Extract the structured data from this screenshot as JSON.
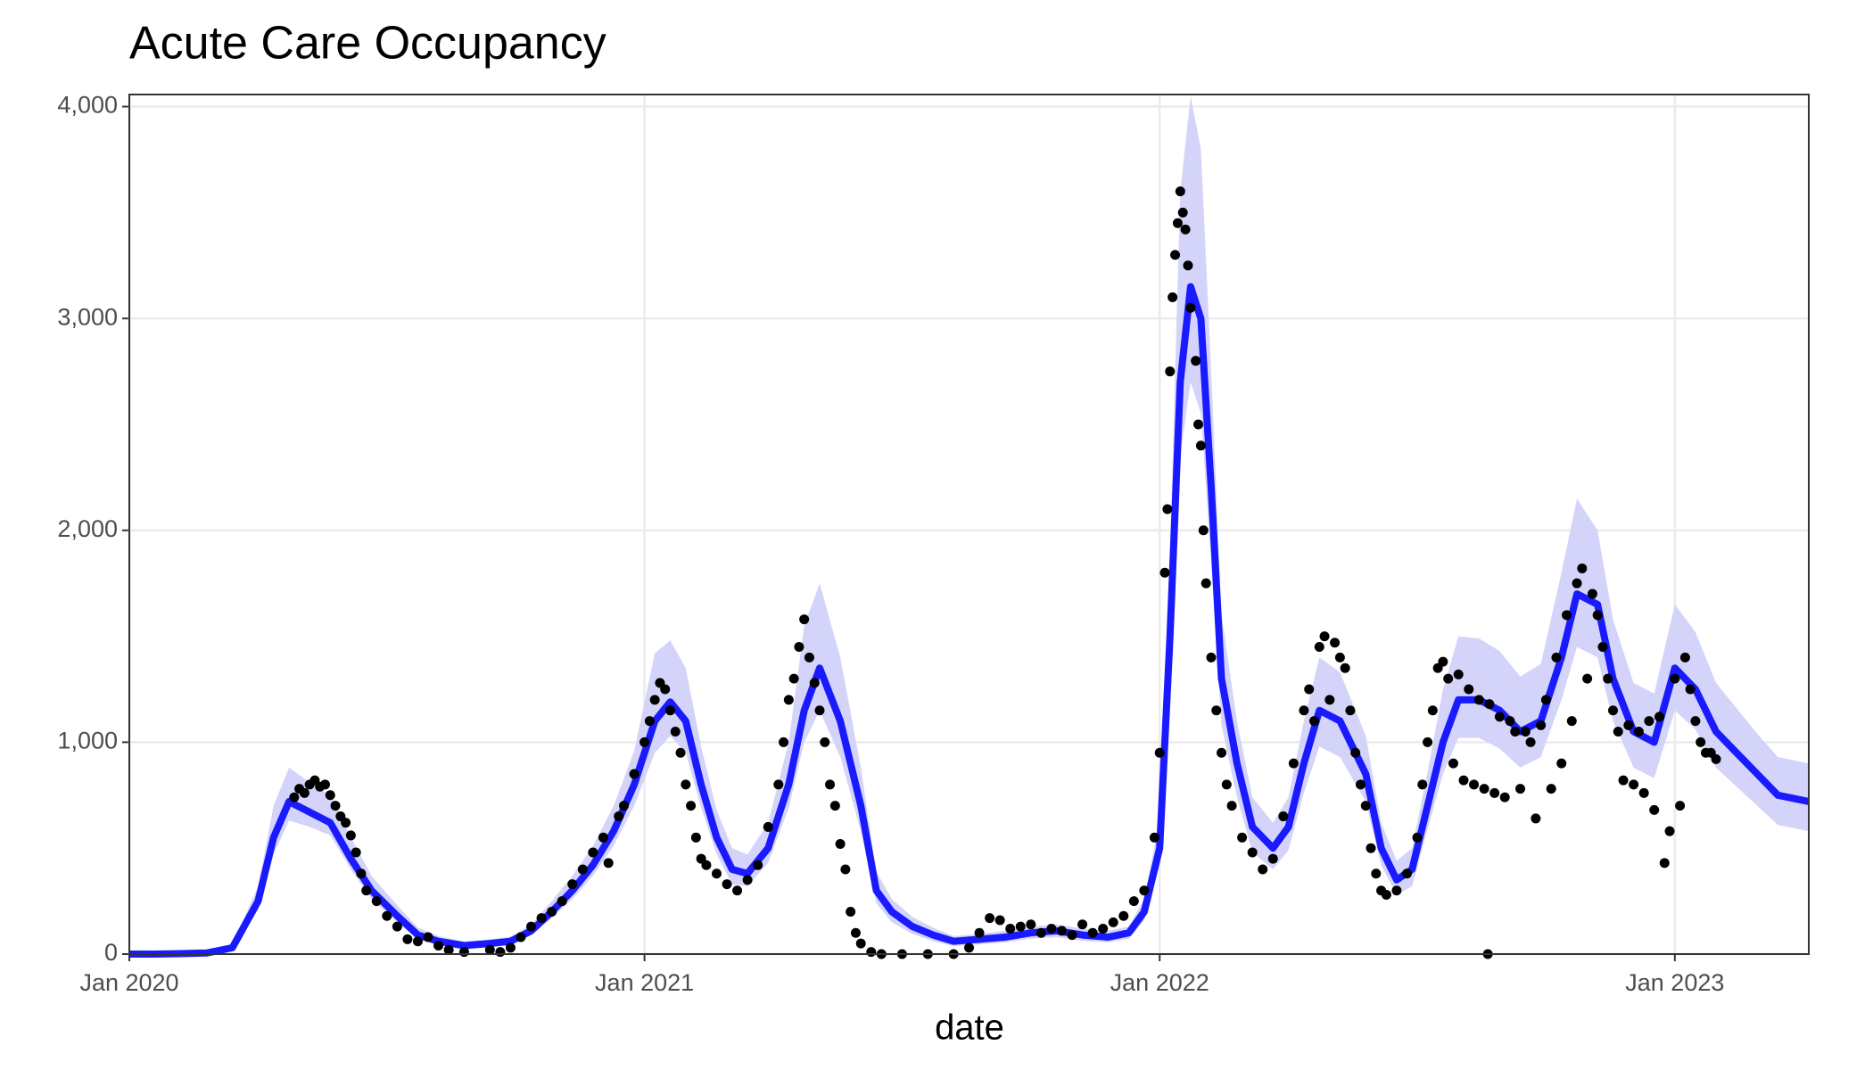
{
  "chart_data": {
    "type": "line",
    "title": "Acute Care Occupancy",
    "xlabel": "date",
    "xlim": [
      2020,
      2023.26
    ],
    "ylim": [
      0,
      4057
    ],
    "xticks": [
      {
        "value": 2020,
        "label": "Jan 2020"
      },
      {
        "value": 2021,
        "label": "Jan 2021"
      },
      {
        "value": 2022,
        "label": "Jan 2022"
      },
      {
        "value": 2023,
        "label": "Jan 2023"
      }
    ],
    "yticks": [
      0,
      {
        "value": 1000,
        "label": "1,000"
      },
      {
        "value": 2000,
        "label": "2,000"
      },
      {
        "value": 3000,
        "label": "3,000"
      },
      {
        "value": 4000,
        "label": "4,000"
      }
    ],
    "grid": true,
    "x": [
      2020.0,
      2020.05,
      2020.1,
      2020.15,
      2020.2,
      2020.25,
      2020.28,
      2020.31,
      2020.35,
      2020.39,
      2020.43,
      2020.47,
      2020.52,
      2020.56,
      2020.6,
      2020.65,
      2020.7,
      2020.74,
      2020.78,
      2020.82,
      2020.86,
      2020.9,
      2020.94,
      2020.98,
      2021.02,
      2021.05,
      2021.08,
      2021.11,
      2021.14,
      2021.17,
      2021.2,
      2021.24,
      2021.28,
      2021.31,
      2021.34,
      2021.38,
      2021.42,
      2021.45,
      2021.48,
      2021.52,
      2021.56,
      2021.6,
      2021.65,
      2021.7,
      2021.75,
      2021.8,
      2021.85,
      2021.9,
      2021.94,
      2021.97,
      2022.0,
      2022.02,
      2022.04,
      2022.06,
      2022.08,
      2022.1,
      2022.12,
      2022.15,
      2022.18,
      2022.22,
      2022.25,
      2022.28,
      2022.31,
      2022.35,
      2022.4,
      2022.43,
      2022.46,
      2022.49,
      2022.52,
      2022.55,
      2022.58,
      2022.62,
      2022.66,
      2022.7,
      2022.74,
      2022.78,
      2022.81,
      2022.85,
      2022.88,
      2022.92,
      2022.96,
      2023.0,
      2023.04,
      2023.08,
      2023.12,
      2023.16,
      2023.2,
      2023.26
    ],
    "series": [
      {
        "color": "#1a1aff",
        "band_color": "#d4d4fa",
        "values": [
          0,
          0,
          2,
          5,
          30,
          250,
          550,
          720,
          670,
          620,
          450,
          300,
          180,
          90,
          60,
          40,
          50,
          60,
          110,
          200,
          300,
          420,
          580,
          800,
          1100,
          1190,
          1100,
          800,
          550,
          400,
          380,
          500,
          800,
          1150,
          1350,
          1100,
          700,
          300,
          200,
          130,
          90,
          60,
          70,
          80,
          100,
          110,
          90,
          80,
          100,
          200,
          500,
          1500,
          2700,
          3150,
          3000,
          2200,
          1300,
          900,
          600,
          500,
          600,
          900,
          1150,
          1100,
          850,
          500,
          350,
          400,
          700,
          1000,
          1200,
          1200,
          1150,
          1050,
          1100,
          1400,
          1700,
          1650,
          1300,
          1050,
          1000,
          1350,
          1250,
          1050,
          950,
          850,
          750,
          720
        ],
        "lower": [
          0,
          0,
          1,
          4,
          25,
          210,
          470,
          630,
          600,
          560,
          400,
          260,
          150,
          70,
          45,
          28,
          38,
          45,
          90,
          170,
          260,
          370,
          510,
          700,
          950,
          1030,
          950,
          690,
          470,
          330,
          320,
          430,
          690,
          1000,
          1150,
          930,
          580,
          240,
          150,
          95,
          60,
          38,
          46,
          55,
          72,
          80,
          62,
          55,
          72,
          160,
          420,
          1300,
          2350,
          2700,
          2550,
          1850,
          1080,
          740,
          480,
          400,
          490,
          760,
          980,
          930,
          720,
          420,
          280,
          320,
          590,
          850,
          1020,
          1020,
          970,
          880,
          930,
          1200,
          1450,
          1400,
          1100,
          880,
          830,
          1150,
          1060,
          880,
          790,
          700,
          610,
          580
        ],
        "upper": [
          0,
          0,
          4,
          8,
          45,
          320,
          700,
          880,
          810,
          750,
          550,
          370,
          230,
          125,
          85,
          60,
          70,
          82,
          140,
          250,
          370,
          510,
          700,
          960,
          1420,
          1480,
          1350,
          980,
          680,
          500,
          470,
          620,
          1000,
          1550,
          1750,
          1400,
          880,
          390,
          260,
          175,
          125,
          85,
          95,
          110,
          130,
          140,
          120,
          110,
          130,
          260,
          640,
          1900,
          3600,
          4050,
          3800,
          2750,
          1600,
          1100,
          740,
          620,
          740,
          1100,
          1400,
          1330,
          1030,
          620,
          440,
          500,
          860,
          1250,
          1500,
          1490,
          1430,
          1310,
          1370,
          1800,
          2150,
          2000,
          1580,
          1280,
          1230,
          1650,
          1520,
          1280,
          1160,
          1040,
          930,
          900
        ]
      }
    ],
    "points": {
      "color": "#000000",
      "x": [
        2020.32,
        2020.33,
        2020.34,
        2020.35,
        2020.36,
        2020.37,
        2020.38,
        2020.39,
        2020.4,
        2020.41,
        2020.42,
        2020.43,
        2020.44,
        2020.45,
        2020.46,
        2020.48,
        2020.5,
        2020.52,
        2020.54,
        2020.56,
        2020.58,
        2020.6,
        2020.62,
        2020.65,
        2020.7,
        2020.72,
        2020.74,
        2020.76,
        2020.78,
        2020.8,
        2020.82,
        2020.84,
        2020.86,
        2020.88,
        2020.9,
        2020.92,
        2020.93,
        2020.95,
        2020.96,
        2020.98,
        2021.0,
        2021.01,
        2021.02,
        2021.03,
        2021.04,
        2021.05,
        2021.06,
        2021.07,
        2021.08,
        2021.09,
        2021.1,
        2021.11,
        2021.12,
        2021.14,
        2021.16,
        2021.18,
        2021.2,
        2021.22,
        2021.24,
        2021.26,
        2021.27,
        2021.28,
        2021.29,
        2021.3,
        2021.31,
        2021.32,
        2021.33,
        2021.34,
        2021.35,
        2021.36,
        2021.37,
        2021.38,
        2021.39,
        2021.4,
        2021.41,
        2021.42,
        2021.44,
        2021.46,
        2021.5,
        2021.55,
        2021.6,
        2021.63,
        2021.65,
        2021.67,
        2021.69,
        2021.71,
        2021.73,
        2021.75,
        2021.77,
        2021.79,
        2021.81,
        2021.83,
        2021.85,
        2021.87,
        2021.89,
        2021.91,
        2021.93,
        2021.95,
        2021.97,
        2021.99,
        2022.0,
        2022.01,
        2022.015,
        2022.02,
        2022.025,
        2022.03,
        2022.035,
        2022.04,
        2022.045,
        2022.05,
        2022.055,
        2022.06,
        2022.07,
        2022.075,
        2022.08,
        2022.085,
        2022.09,
        2022.1,
        2022.11,
        2022.12,
        2022.13,
        2022.14,
        2022.16,
        2022.18,
        2022.2,
        2022.22,
        2022.24,
        2022.26,
        2022.28,
        2022.29,
        2022.3,
        2022.31,
        2022.32,
        2022.33,
        2022.34,
        2022.35,
        2022.36,
        2022.37,
        2022.38,
        2022.39,
        2022.4,
        2022.41,
        2022.42,
        2022.43,
        2022.44,
        2022.46,
        2022.48,
        2022.5,
        2022.51,
        2022.52,
        2022.53,
        2022.54,
        2022.55,
        2022.56,
        2022.57,
        2022.58,
        2022.59,
        2022.6,
        2022.61,
        2022.62,
        2022.63,
        2022.64,
        2022.65,
        2022.66,
        2022.67,
        2022.68,
        2022.69,
        2022.7,
        2022.71,
        2022.72,
        2022.73,
        2022.74,
        2022.75,
        2022.76,
        2022.77,
        2022.78,
        2022.79,
        2022.8,
        2022.81,
        2022.82,
        2022.83,
        2022.84,
        2022.85,
        2022.86,
        2022.87,
        2022.88,
        2022.89,
        2022.9,
        2022.91,
        2022.92,
        2022.93,
        2022.94,
        2022.95,
        2022.96,
        2022.97,
        2022.98,
        2022.99,
        2023.0,
        2023.01,
        2023.02,
        2023.03,
        2023.04,
        2023.05,
        2023.06,
        2023.07,
        2023.08,
        2022.637
      ],
      "values": [
        740,
        780,
        760,
        800,
        820,
        790,
        800,
        750,
        700,
        650,
        620,
        560,
        480,
        380,
        300,
        250,
        180,
        130,
        70,
        60,
        80,
        40,
        20,
        10,
        20,
        10,
        30,
        80,
        130,
        170,
        200,
        250,
        330,
        400,
        480,
        550,
        430,
        650,
        700,
        850,
        1000,
        1100,
        1200,
        1280,
        1250,
        1150,
        1050,
        950,
        800,
        700,
        550,
        450,
        420,
        380,
        330,
        300,
        350,
        420,
        600,
        800,
        1000,
        1200,
        1300,
        1450,
        1580,
        1400,
        1280,
        1150,
        1000,
        800,
        700,
        520,
        400,
        200,
        100,
        50,
        10,
        0,
        0,
        0,
        0,
        30,
        100,
        170,
        160,
        120,
        130,
        140,
        100,
        120,
        110,
        90,
        140,
        100,
        120,
        150,
        180,
        250,
        300,
        550,
        950,
        1800,
        2100,
        2750,
        3100,
        3300,
        3450,
        3600,
        3500,
        3420,
        3250,
        3050,
        2800,
        2500,
        2400,
        2000,
        1750,
        1400,
        1150,
        950,
        800,
        700,
        550,
        480,
        400,
        450,
        650,
        900,
        1150,
        1250,
        1100,
        1450,
        1500,
        1200,
        1470,
        1400,
        1350,
        1150,
        950,
        800,
        700,
        500,
        380,
        300,
        280,
        300,
        380,
        550,
        800,
        1000,
        1150,
        1350,
        1380,
        1300,
        900,
        1320,
        820,
        1250,
        800,
        1200,
        780,
        1180,
        760,
        1120,
        740,
        1100,
        1050,
        780,
        1050,
        1000,
        640,
        1080,
        1200,
        780,
        1400,
        900,
        1600,
        1100,
        1750,
        1820,
        1300,
        1700,
        1600,
        1450,
        1300,
        1150,
        1050,
        820,
        1080,
        800,
        1050,
        760,
        1100,
        680,
        1120,
        430,
        580,
        1300,
        700,
        1400,
        1250,
        1100,
        1000,
        950,
        950,
        920,
        0
      ]
    }
  }
}
